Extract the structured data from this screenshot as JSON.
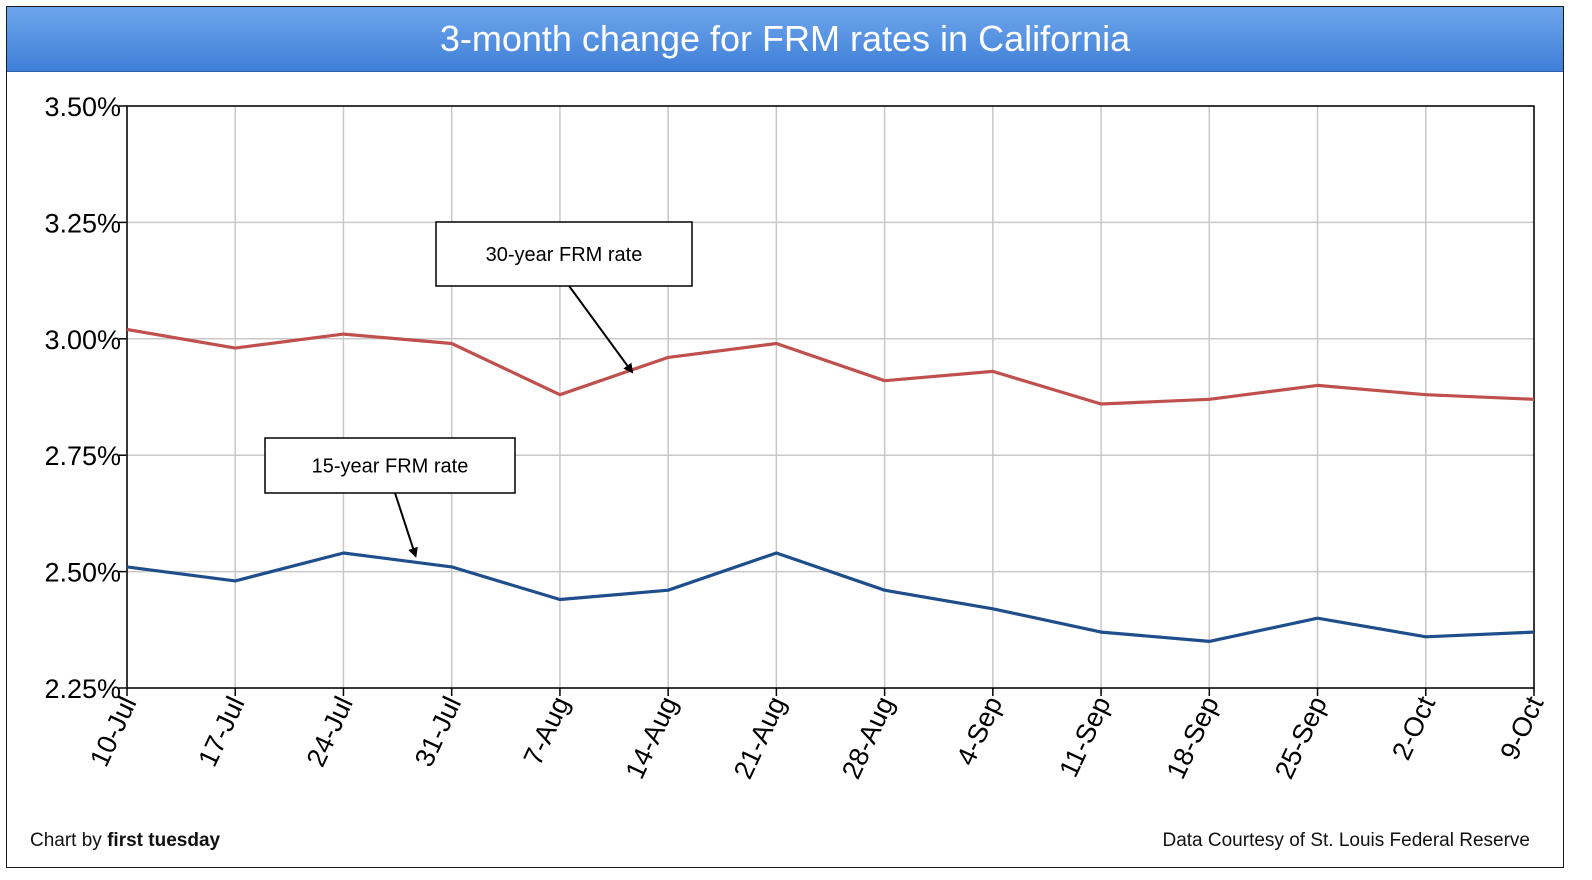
{
  "chart_data": {
    "type": "line",
    "title": "3-month change for FRM rates in California",
    "categories": [
      "10-Jul",
      "17-Jul",
      "24-Jul",
      "31-Jul",
      "7-Aug",
      "14-Aug",
      "21-Aug",
      "28-Aug",
      "4-Sep",
      "11-Sep",
      "18-Sep",
      "25-Sep",
      "2-Oct",
      "9-Oct"
    ],
    "series": [
      {
        "name": "30-year FRM rate",
        "color": "#c0504d",
        "values": [
          3.02,
          2.98,
          3.01,
          2.99,
          2.88,
          2.96,
          2.99,
          2.91,
          2.93,
          2.86,
          2.87,
          2.9,
          2.88,
          2.87
        ]
      },
      {
        "name": "15-year FRM rate",
        "color": "#1f4e8c",
        "values": [
          2.51,
          2.48,
          2.54,
          2.51,
          2.44,
          2.46,
          2.54,
          2.46,
          2.42,
          2.37,
          2.35,
          2.4,
          2.36,
          2.37
        ]
      }
    ],
    "ylim": [
      2.25,
      3.5
    ],
    "yticks": [
      "2.25%",
      "2.50%",
      "2.75%",
      "3.00%",
      "3.25%",
      "3.50%"
    ],
    "grid": true,
    "annotations": [
      {
        "text": "30-year FRM rate",
        "series": 0,
        "points_to_index": 5
      },
      {
        "text": "15-year FRM rate",
        "series": 1,
        "points_to_index": 3
      }
    ]
  },
  "footer": {
    "left_prefix": "Chart by ",
    "left_brand": "first tuesday",
    "right": "Data Courtesy of  St. Louis Federal Reserve"
  }
}
